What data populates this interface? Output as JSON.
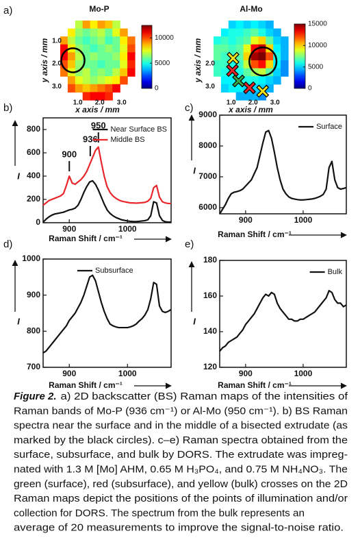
{
  "chart_data": [
    {
      "type": "heatmap",
      "panel": "a)",
      "title": "Mo-P",
      "xlabel": "x axis / mm",
      "ylabel": "y axis / mm",
      "x": [
        0.37,
        0.71,
        1.05,
        1.39,
        1.73,
        2.07,
        2.41,
        2.75,
        3.09,
        3.43
      ],
      "y": [
        0.275,
        0.625,
        0.975,
        1.325,
        1.675,
        2.025,
        2.375,
        2.725,
        3.075,
        3.425
      ],
      "xlim": [
        0.2,
        3.6
      ],
      "ylim": [
        3.6,
        0.1
      ],
      "xticks": [
        {
          "value": 1,
          "label": "1.0"
        },
        {
          "value": 2,
          "label": "2.0"
        },
        {
          "value": 3,
          "label": "3.0"
        }
      ],
      "yticks": [
        {
          "value": 1,
          "label": "1.0"
        },
        {
          "value": 2,
          "label": "2.0"
        },
        {
          "value": 3,
          "label": "3.0"
        }
      ],
      "colormap": "jet",
      "zlim": [
        0,
        12500
      ],
      "zticks": [
        0,
        5000,
        10000
      ],
      "values": [
        [
          null,
          null,
          7000,
          9000,
          8000,
          9000,
          8500,
          7000,
          null,
          null
        ],
        [
          null,
          8000,
          6500,
          6000,
          6500,
          7000,
          6000,
          7500,
          9000,
          null
        ],
        [
          9000,
          7000,
          6000,
          5500,
          6000,
          6500,
          5500,
          6000,
          8000,
          9500
        ],
        [
          11000,
          8000,
          6500,
          6000,
          5500,
          6000,
          6500,
          6000,
          7500,
          10000
        ],
        [
          11000,
          9000,
          7000,
          6000,
          6500,
          6000,
          6000,
          6500,
          8000,
          11000
        ],
        [
          10000,
          8500,
          6500,
          6000,
          6000,
          5500,
          6000,
          6000,
          7500,
          10500
        ],
        [
          9500,
          7500,
          6500,
          7000,
          6000,
          6500,
          6000,
          7000,
          8500,
          11000
        ],
        [
          null,
          9000,
          7500,
          7000,
          6500,
          7000,
          7500,
          8000,
          10000,
          null
        ],
        [
          null,
          10000,
          9000,
          8500,
          9000,
          9500,
          10000,
          11000,
          null,
          null
        ],
        [
          null,
          null,
          null,
          10500,
          11000,
          11000,
          10500,
          null,
          null,
          null
        ]
      ],
      "circles": [
        {
          "x": 0.78,
          "y": 1.85,
          "r": 0.53
        }
      ]
    },
    {
      "type": "heatmap",
      "title": "Al-Mo",
      "xlabel": "x axis / mm",
      "ylabel": "y axis / mm",
      "x": [
        0.37,
        0.71,
        1.05,
        1.39,
        1.73,
        2.07,
        2.41,
        2.75,
        3.09,
        3.43
      ],
      "y": [
        0.275,
        0.625,
        0.975,
        1.325,
        1.675,
        2.025,
        2.375,
        2.725,
        3.075,
        3.425
      ],
      "xlim": [
        0.2,
        3.6
      ],
      "ylim": [
        3.6,
        0.1
      ],
      "xticks": [
        {
          "value": 1,
          "label": "1.0"
        },
        {
          "value": 2,
          "label": "2.0"
        },
        {
          "value": 3,
          "label": "3.0"
        }
      ],
      "yticks": [
        {
          "value": 2,
          "label": "2.0"
        },
        {
          "value": 3,
          "label": "3.0"
        }
      ],
      "colormap": "jet",
      "zlim": [
        0,
        15000
      ],
      "zticks": [
        0,
        5000,
        10000,
        15000
      ],
      "values": [
        [
          null,
          null,
          5000,
          5500,
          5000,
          5500,
          5000,
          4500,
          null,
          null
        ],
        [
          null,
          5500,
          6000,
          6000,
          6500,
          7000,
          6000,
          5000,
          4500,
          null
        ],
        [
          6000,
          6500,
          6000,
          6500,
          7000,
          9000,
          10000,
          7000,
          5000,
          4500
        ],
        [
          7000,
          7000,
          6500,
          7000,
          9000,
          13000,
          14000,
          10000,
          5500,
          4500
        ],
        [
          7000,
          6500,
          6500,
          7000,
          10000,
          14500,
          15000,
          12000,
          6000,
          4500
        ],
        [
          6500,
          6500,
          6000,
          6500,
          8500,
          12000,
          13000,
          10000,
          5500,
          4000
        ],
        [
          6500,
          6000,
          6000,
          6000,
          7000,
          8000,
          8500,
          7000,
          5000,
          4000
        ],
        [
          null,
          5500,
          5500,
          6000,
          6000,
          6000,
          5500,
          5000,
          4500,
          null
        ],
        [
          null,
          5000,
          5500,
          5500,
          5000,
          5000,
          5000,
          4500,
          null,
          null
        ],
        [
          null,
          null,
          null,
          4500,
          4500,
          4500,
          4000,
          null,
          null,
          null
        ]
      ],
      "circles": [
        {
          "x": 2.45,
          "y": 1.9,
          "r": 0.62
        }
      ],
      "markers": [
        {
          "x": 1.09,
          "y": 1.76,
          "color": "#f2e21c"
        },
        {
          "x": 1.06,
          "y": 2.3,
          "color": "#e8262b"
        },
        {
          "x": 1.34,
          "y": 2.76,
          "color": "#3aa845"
        },
        {
          "x": 1.84,
          "y": 3.06,
          "color": "#e8262b"
        },
        {
          "x": 2.44,
          "y": 3.21,
          "color": "#f2e21c"
        }
      ]
    },
    {
      "type": "line",
      "panel": "b)",
      "xlabel": "Raman Shift / cm⁻¹",
      "ylabel": "I",
      "x": [
        855,
        860,
        865,
        870,
        875,
        880,
        885,
        890,
        895,
        900,
        905,
        910,
        915,
        920,
        925,
        930,
        935,
        940,
        945,
        950,
        955,
        960,
        965,
        970,
        975,
        980,
        985,
        990,
        995,
        1000,
        1005,
        1010,
        1015,
        1020,
        1025,
        1030,
        1035,
        1040,
        1045,
        1050,
        1055,
        1060,
        1065,
        1070,
        1075
      ],
      "xlim": [
        855,
        1075
      ],
      "xticks": [
        900,
        1000
      ],
      "ylim": [
        0,
        900
      ],
      "yticks": [
        0,
        200,
        400,
        600,
        800
      ],
      "grid": false,
      "legend": "upper right",
      "annotations": [
        "900",
        "936",
        "950"
      ],
      "series": [
        {
          "name": "Near Surface BS",
          "color": "#111111",
          "values": [
            5,
            30,
            50,
            65,
            75,
            80,
            85,
            90,
            100,
            110,
            115,
            125,
            150,
            200,
            260,
            310,
            350,
            360,
            330,
            280,
            220,
            160,
            110,
            80,
            60,
            45,
            35,
            25,
            20,
            15,
            12,
            10,
            10,
            12,
            15,
            18,
            25,
            60,
            180,
            170,
            60,
            20,
            8,
            5,
            5
          ]
        },
        {
          "name": "Middle BS",
          "color": "#e8262b",
          "values": [
            150,
            170,
            190,
            200,
            210,
            220,
            230,
            250,
            320,
            400,
            340,
            330,
            350,
            370,
            400,
            440,
            500,
            560,
            620,
            650,
            520,
            400,
            310,
            260,
            230,
            210,
            195,
            185,
            180,
            175,
            170,
            170,
            168,
            170,
            172,
            175,
            185,
            210,
            300,
            320,
            220,
            180,
            170,
            165,
            165
          ]
        }
      ]
    },
    {
      "type": "line",
      "panel": "c)",
      "xlabel": "Raman Shift / cm⁻¹",
      "ylabel": "I",
      "x": [
        855,
        860,
        865,
        870,
        875,
        880,
        885,
        890,
        895,
        900,
        905,
        910,
        915,
        920,
        925,
        930,
        935,
        940,
        945,
        950,
        955,
        960,
        965,
        970,
        975,
        980,
        985,
        990,
        995,
        1000,
        1005,
        1010,
        1015,
        1020,
        1025,
        1030,
        1035,
        1040,
        1045,
        1050,
        1055,
        1060,
        1065,
        1070,
        1075
      ],
      "xlim": [
        855,
        1075
      ],
      "xticks": [
        900,
        1000
      ],
      "ylim": [
        5800,
        9000
      ],
      "yticks": [
        6000,
        7000,
        8000,
        9000
      ],
      "grid": false,
      "legend": "upper right",
      "series": [
        {
          "name": "Surface",
          "color": "#111111",
          "values": [
            5800,
            5950,
            6100,
            6300,
            6450,
            6500,
            6520,
            6550,
            6600,
            6700,
            6800,
            6900,
            7100,
            7300,
            7700,
            8100,
            8450,
            8500,
            8250,
            7800,
            7300,
            6900,
            6600,
            6450,
            6350,
            6300,
            6280,
            6260,
            6250,
            6250,
            6260,
            6270,
            6280,
            6300,
            6330,
            6370,
            6430,
            6600,
            7300,
            7500,
            6900,
            6650,
            6600,
            6620,
            6650
          ]
        }
      ]
    },
    {
      "type": "line",
      "panel": "d)",
      "xlabel": "Raman Shift / cm⁻¹",
      "ylabel": "I",
      "x": [
        855,
        860,
        865,
        870,
        875,
        880,
        885,
        890,
        895,
        900,
        905,
        910,
        915,
        920,
        925,
        930,
        935,
        940,
        945,
        950,
        955,
        960,
        965,
        970,
        975,
        980,
        985,
        990,
        995,
        1000,
        1005,
        1010,
        1015,
        1020,
        1025,
        1030,
        1035,
        1040,
        1045,
        1050,
        1055,
        1060,
        1065,
        1070,
        1075
      ],
      "xlim": [
        855,
        1075
      ],
      "xticks": [
        900,
        1000
      ],
      "ylim": [
        700,
        1000
      ],
      "yticks": [
        700,
        800,
        900,
        1000
      ],
      "grid": false,
      "legend": "upper left",
      "series": [
        {
          "name": "Subsurface",
          "color": "#111111",
          "values": [
            740,
            745,
            755,
            765,
            775,
            785,
            795,
            805,
            815,
            830,
            840,
            850,
            865,
            880,
            900,
            925,
            950,
            955,
            940,
            910,
            880,
            855,
            835,
            820,
            815,
            812,
            810,
            810,
            810,
            810,
            812,
            815,
            820,
            828,
            835,
            845,
            860,
            890,
            935,
            930,
            870,
            855,
            852,
            855,
            860
          ]
        }
      ]
    },
    {
      "type": "line",
      "panel": "e)",
      "xlabel": "Raman Shift / cm⁻¹",
      "ylabel": "I",
      "x": [
        855,
        860,
        865,
        870,
        875,
        880,
        885,
        890,
        895,
        900,
        905,
        910,
        915,
        920,
        925,
        930,
        935,
        940,
        945,
        950,
        955,
        960,
        965,
        970,
        975,
        980,
        985,
        990,
        995,
        1000,
        1005,
        1010,
        1015,
        1020,
        1025,
        1030,
        1035,
        1040,
        1045,
        1050,
        1055,
        1060,
        1065,
        1070,
        1075
      ],
      "xlim": [
        855,
        1075
      ],
      "xticks": [
        900,
        1000
      ],
      "ylim": [
        120,
        180
      ],
      "yticks": [
        120,
        140,
        160,
        180
      ],
      "grid": false,
      "legend": "upper right",
      "series": [
        {
          "name": "Bulk",
          "color": "#111111",
          "values": [
            129,
            131,
            132,
            134,
            135,
            136,
            137,
            139,
            141,
            144,
            146,
            148,
            150,
            153,
            156,
            159,
            161,
            160,
            162,
            161,
            156,
            153,
            151,
            149,
            147,
            147,
            146,
            146,
            147,
            147,
            148,
            149,
            150,
            151,
            153,
            155,
            157,
            159,
            163,
            162,
            158,
            156,
            156,
            154,
            155
          ]
        }
      ]
    }
  ],
  "caption": {
    "label": "Figure 2.",
    "lines": [
      "a) 2D backscatter (BS) Raman maps of the intensities of",
      "Raman bands of Mo-P (936 cm⁻¹) or Al-Mo (950 cm⁻¹). b) BS Raman",
      "spectra near the surface and in the middle of a bisected extrudate (as",
      "marked by the black circles). c–e) Raman spectra obtained from the",
      "surface, subsurface, and bulk by DORS. The extrudate was impreg-",
      "nated with 1.3 M [Mo] AHM, 0.65 M H₃PO₄, and 0.75 M NH₄NO₃. The",
      "green (surface), red (subsurface), and yellow (bulk) crosses on the 2D",
      "Raman maps depict the positions of the points of illumination and/or",
      "collection for DORS. The spectrum from the bulk represents an",
      "average of 20 measurements to improve the signal-to-noise ratio."
    ]
  }
}
